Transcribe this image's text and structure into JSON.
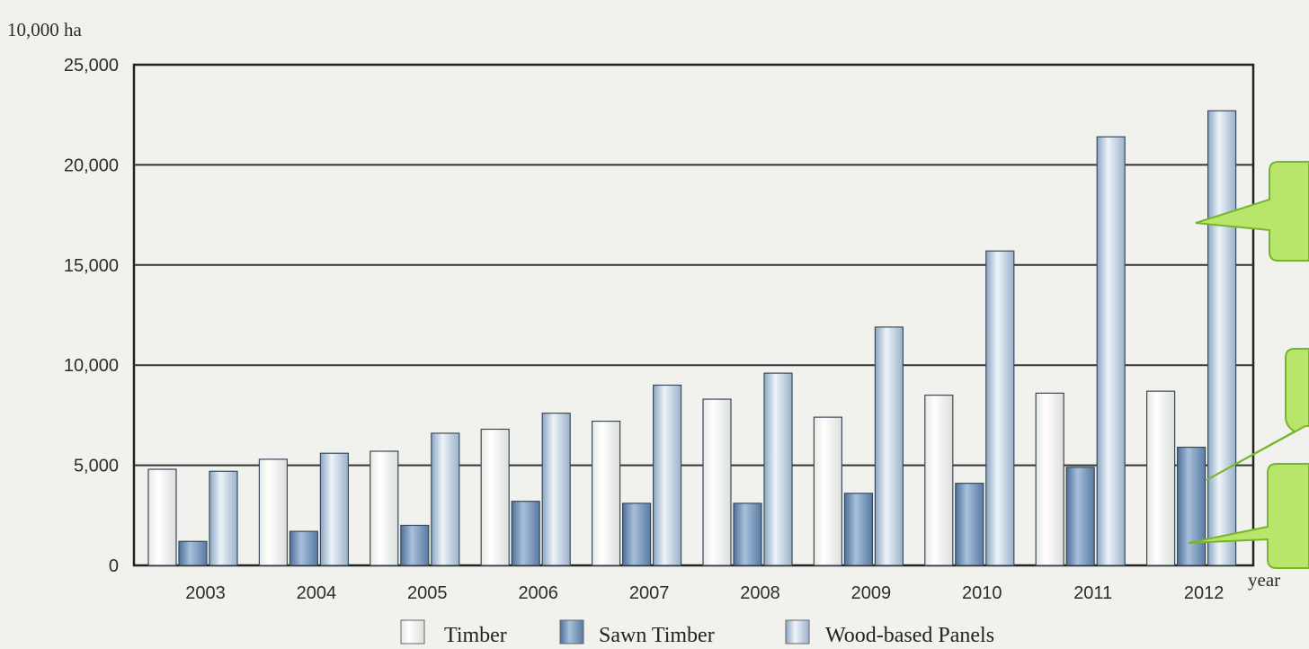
{
  "chart_data": {
    "type": "bar",
    "unit_label": "10,000 ha",
    "x_axis_label": "year",
    "categories": [
      "2003",
      "2004",
      "2005",
      "2006",
      "2007",
      "2008",
      "2009",
      "2010",
      "2011",
      "2012"
    ],
    "series": [
      {
        "name": "Timber",
        "values": [
          4800,
          5300,
          5700,
          6800,
          7200,
          8300,
          7400,
          8500,
          8600,
          8700
        ]
      },
      {
        "name": "Sawn Timber",
        "values": [
          1200,
          1700,
          2000,
          3200,
          3100,
          3100,
          3600,
          4100,
          4900,
          5900
        ]
      },
      {
        "name": "Wood-based Panels",
        "values": [
          4700,
          5600,
          6600,
          7600,
          9000,
          9600,
          11900,
          15700,
          21400,
          22700
        ]
      }
    ],
    "ylim": [
      0,
      25000
    ],
    "yticks": [
      0,
      5000,
      10000,
      15000,
      20000,
      25000
    ],
    "ytick_labels": [
      "0",
      "5,000",
      "10,000",
      "15,000",
      "20,000",
      "25,000"
    ],
    "grid": true,
    "legend_position": "bottom"
  },
  "colors": {
    "background": "#f1f2ed",
    "timber": "#f6f6f3",
    "sawn_timber": "#7f9fc2",
    "panels": "#c9d8e6",
    "callout": "#b7e66a",
    "callout_edge": "#77b52c"
  }
}
